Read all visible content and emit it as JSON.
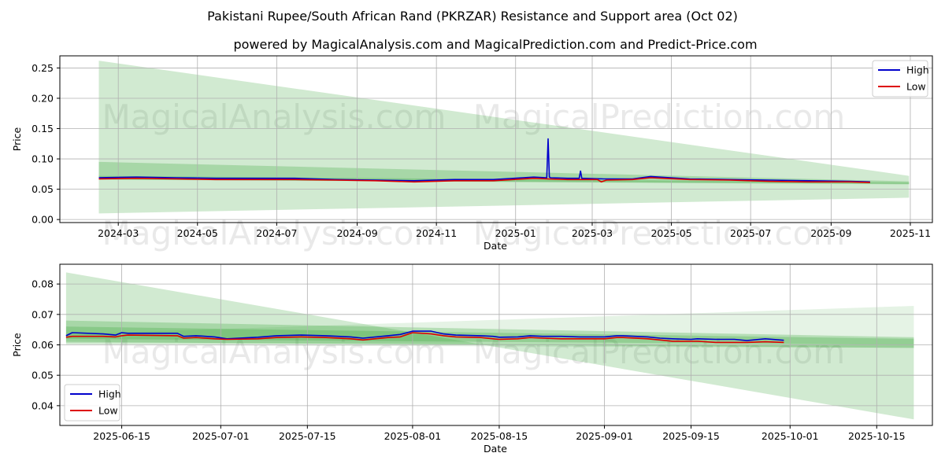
{
  "title": "Pakistani Rupee/South African Rand (PKRZAR) Resistance and Support area (Oct 02)",
  "subtitle": "powered by MagicalAnalysis.com and MagicalPrediction.com and Predict-Price.com",
  "watermarks": [
    "MagicalAnalysis.com",
    "MagicalPrediction.com"
  ],
  "colors": {
    "high": "#0000cc",
    "low": "#dd0000",
    "band": "#2ca02c",
    "grid": "#b0b0b0"
  },
  "chart_data": [
    {
      "type": "line",
      "xlabel": "Date",
      "ylabel": "Price",
      "grid": true,
      "legend_position": "top-right",
      "x_ticks": [
        "2024-03",
        "2024-05",
        "2024-07",
        "2024-09",
        "2024-11",
        "2025-01",
        "2025-03",
        "2025-05",
        "2025-07",
        "2025-09",
        "2025-11"
      ],
      "y_ticks": [
        "0.00",
        "0.05",
        "0.10",
        "0.15",
        "0.20",
        "0.25"
      ],
      "ylim": [
        -0.005,
        0.27
      ],
      "x_range": [
        "2024-01-16",
        "2025-11-18"
      ],
      "x_ticks_dates": [
        "2024-03-01",
        "2024-05-01",
        "2024-07-01",
        "2024-09-01",
        "2024-11-01",
        "2025-01-01",
        "2025-03-01",
        "2025-05-01",
        "2025-07-01",
        "2025-09-01",
        "2025-11-01"
      ],
      "bands": [
        {
          "x": [
            "2024-02-15",
            "2025-10-31"
          ],
          "upper": [
            0.262,
            0.072
          ],
          "lower": [
            0.01,
            0.036
          ],
          "opacity": 0.22
        },
        {
          "x": [
            "2024-02-15",
            "2025-10-31"
          ],
          "upper": [
            0.095,
            0.063
          ],
          "lower": [
            0.066,
            0.058
          ],
          "opacity": 0.25
        },
        {
          "x": [
            "2024-02-15",
            "2025-10-31"
          ],
          "upper": [
            0.072,
            0.061
          ],
          "lower": [
            0.066,
            0.059
          ],
          "opacity": 0.25
        }
      ],
      "series": [
        {
          "name": "High",
          "x": [
            "2024-02-15",
            "2024-03-15",
            "2024-04-15",
            "2024-05-15",
            "2024-06-15",
            "2024-07-15",
            "2024-08-15",
            "2024-09-15",
            "2024-10-15",
            "2024-11-15",
            "2024-12-15",
            "2025-01-15",
            "2025-01-25",
            "2025-01-26",
            "2025-01-27",
            "2025-01-28",
            "2025-02-10",
            "2025-02-19",
            "2025-02-20",
            "2025-02-21",
            "2025-03-10",
            "2025-04-01",
            "2025-04-15",
            "2025-05-15",
            "2025-06-15",
            "2025-07-15",
            "2025-08-15",
            "2025-09-15",
            "2025-10-01"
          ],
          "values": [
            0.069,
            0.07,
            0.069,
            0.068,
            0.068,
            0.068,
            0.066,
            0.065,
            0.064,
            0.066,
            0.066,
            0.07,
            0.069,
            0.133,
            0.07,
            0.069,
            0.068,
            0.068,
            0.08,
            0.068,
            0.067,
            0.067,
            0.071,
            0.067,
            0.066,
            0.065,
            0.064,
            0.063,
            0.062
          ]
        },
        {
          "name": "Low",
          "x": [
            "2024-02-15",
            "2024-03-15",
            "2024-04-15",
            "2024-05-15",
            "2024-06-15",
            "2024-07-15",
            "2024-08-15",
            "2024-09-15",
            "2024-10-15",
            "2024-11-15",
            "2024-12-15",
            "2025-01-15",
            "2025-01-26",
            "2025-02-10",
            "2025-02-20",
            "2025-03-05",
            "2025-03-08",
            "2025-03-12",
            "2025-04-01",
            "2025-04-15",
            "2025-05-15",
            "2025-06-15",
            "2025-07-15",
            "2025-08-15",
            "2025-09-15",
            "2025-10-01"
          ],
          "values": [
            0.067,
            0.068,
            0.067,
            0.066,
            0.066,
            0.066,
            0.065,
            0.064,
            0.062,
            0.064,
            0.064,
            0.068,
            0.067,
            0.066,
            0.066,
            0.066,
            0.062,
            0.065,
            0.066,
            0.069,
            0.066,
            0.065,
            0.063,
            0.062,
            0.062,
            0.061
          ]
        }
      ]
    },
    {
      "type": "line",
      "xlabel": "Date",
      "ylabel": "Price",
      "grid": true,
      "legend_position": "bottom-left",
      "x_ticks": [
        "2025-06-15",
        "2025-07-01",
        "2025-07-15",
        "2025-08-01",
        "2025-08-15",
        "2025-09-01",
        "2025-09-15",
        "2025-10-01",
        "2025-10-15"
      ],
      "y_ticks": [
        "0.04",
        "0.05",
        "0.06",
        "0.07",
        "0.08"
      ],
      "ylim": [
        0.0335,
        0.0865
      ],
      "x_range": [
        "2025-06-05",
        "2025-10-24"
      ],
      "x_ticks_dates": [
        "2025-06-15",
        "2025-07-01",
        "2025-07-15",
        "2025-08-01",
        "2025-08-15",
        "2025-09-01",
        "2025-09-15",
        "2025-10-01",
        "2025-10-15"
      ],
      "bands": [
        {
          "x": [
            "2025-06-06",
            "2025-10-21"
          ],
          "upper": [
            0.0838,
            0.0355
          ],
          "lower": [
            0.0838,
            0.0355
          ],
          "pivot": [
            "2025-08-01",
            0.0645
          ],
          "opacity": 0.22
        },
        {
          "x": [
            "2025-06-06",
            "2025-10-21"
          ],
          "upper": [
            0.0635,
            0.0728
          ],
          "lower": [
            0.06,
            0.059
          ],
          "opacity": 0.12
        },
        {
          "x": [
            "2025-06-06",
            "2025-10-21"
          ],
          "upper": [
            0.068,
            0.0625
          ],
          "lower": [
            0.061,
            0.059
          ],
          "opacity": 0.25
        },
        {
          "x": [
            "2025-06-06",
            "2025-10-21"
          ],
          "upper": [
            0.066,
            0.062
          ],
          "lower": [
            0.062,
            0.06
          ],
          "opacity": 0.25
        }
      ],
      "series": [
        {
          "name": "High",
          "x": [
            "2025-06-06",
            "2025-06-07",
            "2025-06-12",
            "2025-06-14",
            "2025-06-15",
            "2025-06-16",
            "2025-06-24",
            "2025-06-25",
            "2025-06-27",
            "2025-06-30",
            "2025-07-02",
            "2025-07-07",
            "2025-07-10",
            "2025-07-14",
            "2025-07-18",
            "2025-07-22",
            "2025-07-24",
            "2025-07-28",
            "2025-07-30",
            "2025-08-01",
            "2025-08-04",
            "2025-08-06",
            "2025-08-08",
            "2025-08-12",
            "2025-08-14",
            "2025-08-15",
            "2025-08-18",
            "2025-08-20",
            "2025-08-22",
            "2025-08-25",
            "2025-08-28",
            "2025-09-01",
            "2025-09-03",
            "2025-09-04",
            "2025-09-08",
            "2025-09-10",
            "2025-09-12",
            "2025-09-15",
            "2025-09-16",
            "2025-09-19",
            "2025-09-22",
            "2025-09-24",
            "2025-09-27",
            "2025-09-30"
          ],
          "values": [
            0.063,
            0.064,
            0.0636,
            0.0632,
            0.064,
            0.0638,
            0.0638,
            0.0628,
            0.063,
            0.0626,
            0.062,
            0.0625,
            0.063,
            0.0632,
            0.063,
            0.0626,
            0.0622,
            0.063,
            0.0634,
            0.0645,
            0.0645,
            0.0636,
            0.0632,
            0.063,
            0.0628,
            0.0625,
            0.0626,
            0.063,
            0.0628,
            0.0628,
            0.0626,
            0.0626,
            0.063,
            0.063,
            0.0626,
            0.0622,
            0.062,
            0.0618,
            0.062,
            0.0618,
            0.0618,
            0.0614,
            0.062,
            0.0615
          ]
        },
        {
          "name": "Low",
          "x": [
            "2025-06-06",
            "2025-06-07",
            "2025-06-12",
            "2025-06-14",
            "2025-06-15",
            "2025-06-16",
            "2025-06-24",
            "2025-06-25",
            "2025-06-27",
            "2025-06-30",
            "2025-07-02",
            "2025-07-07",
            "2025-07-10",
            "2025-07-14",
            "2025-07-18",
            "2025-07-22",
            "2025-07-24",
            "2025-07-28",
            "2025-07-30",
            "2025-08-01",
            "2025-08-04",
            "2025-08-06",
            "2025-08-08",
            "2025-08-12",
            "2025-08-14",
            "2025-08-15",
            "2025-08-18",
            "2025-08-20",
            "2025-08-22",
            "2025-08-25",
            "2025-08-28",
            "2025-09-01",
            "2025-09-03",
            "2025-09-04",
            "2025-09-08",
            "2025-09-10",
            "2025-09-12",
            "2025-09-15",
            "2025-09-16",
            "2025-09-19",
            "2025-09-22",
            "2025-09-24",
            "2025-09-27",
            "2025-09-30"
          ],
          "values": [
            0.0625,
            0.0628,
            0.0628,
            0.0626,
            0.063,
            0.0632,
            0.063,
            0.0622,
            0.0624,
            0.062,
            0.0618,
            0.062,
            0.0624,
            0.0626,
            0.0624,
            0.062,
            0.0616,
            0.0624,
            0.0626,
            0.064,
            0.0636,
            0.063,
            0.0626,
            0.0624,
            0.062,
            0.0618,
            0.062,
            0.0624,
            0.0622,
            0.062,
            0.062,
            0.062,
            0.0624,
            0.0624,
            0.062,
            0.0616,
            0.0612,
            0.0612,
            0.0612,
            0.0608,
            0.0608,
            0.0608,
            0.061,
            0.0608
          ]
        }
      ]
    }
  ]
}
